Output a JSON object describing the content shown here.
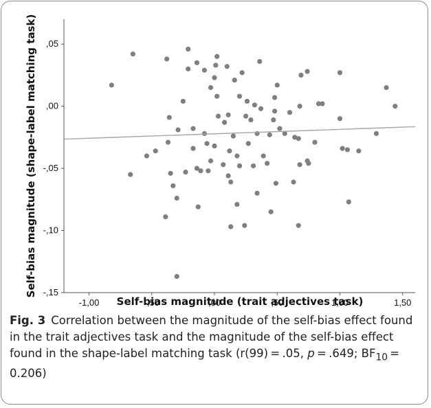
{
  "chart_data": {
    "type": "scatter",
    "xlabel": "Self-bias magnitude (trait adjectives task)",
    "ylabel": "Self-bias magnitude (shape-label matching task)",
    "xlim": [
      -1.2,
      1.6
    ],
    "ylim": [
      -0.15,
      0.07
    ],
    "x_ticks": [
      "-1,00",
      "-,50",
      ",00",
      ",50",
      "1,00",
      "1,50"
    ],
    "x_tick_values": [
      -1.0,
      -0.5,
      0.0,
      0.5,
      1.0,
      1.5
    ],
    "y_ticks": [
      ",05",
      ",00",
      "-,05",
      "-,10",
      "-,15"
    ],
    "y_tick_values": [
      0.05,
      0.0,
      -0.05,
      -0.1,
      -0.15
    ],
    "grid": false,
    "point_color": "#7f7f7f",
    "fit_line_color": "#a6a6a6",
    "fit_line": {
      "x": [
        -1.2,
        1.6
      ],
      "y": [
        -0.0265,
        -0.0165
      ]
    },
    "points": [
      [
        -0.82,
        0.017
      ],
      [
        -0.65,
        0.042
      ],
      [
        -0.67,
        -0.055
      ],
      [
        -0.54,
        -0.04
      ],
      [
        -0.47,
        -0.036
      ],
      [
        -0.38,
        0.038
      ],
      [
        -0.36,
        -0.009
      ],
      [
        -0.35,
        -0.054
      ],
      [
        -0.33,
        -0.064
      ],
      [
        -0.3,
        -0.074
      ],
      [
        -0.3,
        -0.137
      ],
      [
        -0.39,
        -0.089
      ],
      [
        -0.25,
        0.004
      ],
      [
        -0.37,
        -0.029
      ],
      [
        -0.29,
        -0.019
      ],
      [
        -0.23,
        -0.053
      ],
      [
        -0.21,
        0.046
      ],
      [
        -0.21,
        0.03
      ],
      [
        -0.17,
        -0.018
      ],
      [
        -0.17,
        -0.034
      ],
      [
        -0.14,
        0.035
      ],
      [
        -0.14,
        -0.05
      ],
      [
        -0.13,
        -0.081
      ],
      [
        -0.11,
        -0.052
      ],
      [
        -0.08,
        0.029
      ],
      [
        -0.08,
        -0.022
      ],
      [
        -0.06,
        -0.03
      ],
      [
        -0.05,
        -0.052
      ],
      [
        -0.03,
        0.015
      ],
      [
        -0.03,
        -0.044
      ],
      [
        0.02,
        0.04
      ],
      [
        0.01,
        0.033
      ],
      [
        0.0,
        0.023
      ],
      [
        0.02,
        0.008
      ],
      [
        0.03,
        -0.008
      ],
      [
        0.0,
        -0.032
      ],
      [
        0.07,
        -0.047
      ],
      [
        0.08,
        -0.013
      ],
      [
        0.1,
        0.032
      ],
      [
        0.11,
        -0.007
      ],
      [
        0.12,
        -0.036
      ],
      [
        0.11,
        -0.056
      ],
      [
        0.13,
        -0.061
      ],
      [
        0.13,
        -0.097
      ],
      [
        0.15,
        -0.024
      ],
      [
        0.16,
        0.021
      ],
      [
        0.18,
        -0.04
      ],
      [
        0.18,
        -0.079
      ],
      [
        0.2,
        -0.048
      ],
      [
        0.2,
        0.008
      ],
      [
        0.22,
        0.027
      ],
      [
        0.24,
        -0.096
      ],
      [
        0.25,
        -0.008
      ],
      [
        0.26,
        0.004
      ],
      [
        0.27,
        -0.03
      ],
      [
        0.29,
        -0.011
      ],
      [
        0.31,
        -0.048
      ],
      [
        0.32,
        0.001
      ],
      [
        0.34,
        -0.022
      ],
      [
        0.34,
        -0.07
      ],
      [
        0.36,
        0.036
      ],
      [
        0.37,
        -0.002
      ],
      [
        0.39,
        -0.04
      ],
      [
        0.42,
        -0.046
      ],
      [
        0.44,
        -0.023
      ],
      [
        0.45,
        -0.085
      ],
      [
        0.47,
        -0.011
      ],
      [
        0.48,
        0.007
      ],
      [
        0.48,
        -0.004
      ],
      [
        0.49,
        -0.062
      ],
      [
        0.5,
        0.017
      ],
      [
        0.52,
        -0.018
      ],
      [
        0.56,
        -0.022
      ],
      [
        0.6,
        -0.005
      ],
      [
        0.63,
        -0.061
      ],
      [
        0.64,
        -0.025
      ],
      [
        0.67,
        -0.026
      ],
      [
        0.68,
        -0.047
      ],
      [
        0.68,
        0.0
      ],
      [
        0.67,
        -0.096
      ],
      [
        0.69,
        0.025
      ],
      [
        0.74,
        0.028
      ],
      [
        0.74,
        -0.044
      ],
      [
        0.75,
        -0.046
      ],
      [
        0.8,
        -0.029
      ],
      [
        0.83,
        0.002
      ],
      [
        0.86,
        0.002
      ],
      [
        1.0,
        0.027
      ],
      [
        1.0,
        -0.01
      ],
      [
        1.02,
        -0.034
      ],
      [
        1.06,
        -0.035
      ],
      [
        1.07,
        -0.077
      ],
      [
        1.15,
        -0.036
      ],
      [
        1.29,
        -0.022
      ],
      [
        1.37,
        0.015
      ],
      [
        1.44,
        0.0
      ]
    ]
  },
  "caption": {
    "fig_label": "Fig. 3",
    "text_before_p": "Correlation between the magnitude of the self-bias effect found in the trait adjectives task and the magnitude of the self-bias effect found in the shape-label matching task (r(99) = .05, ",
    "p_symbol": "p",
    "text_before_bf": " = .649; ",
    "bf_label": "BF",
    "bf_subscript": "10",
    "text_after_bf": " = 0.206)"
  }
}
